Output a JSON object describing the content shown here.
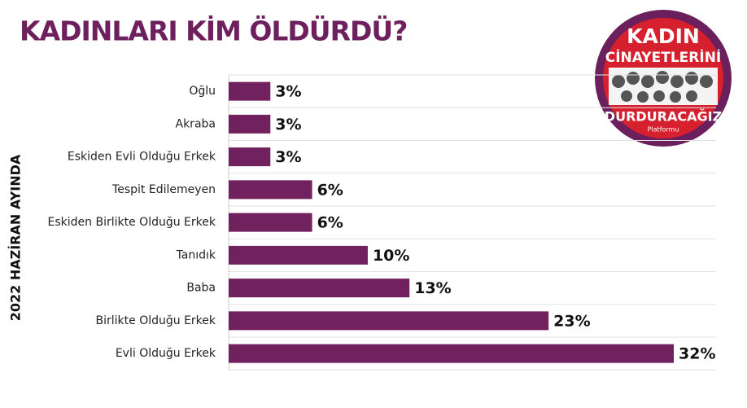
{
  "chart_data": {
    "type": "bar",
    "orientation": "horizontal",
    "title": "KADINLARI KİM ÖLDÜRDÜ?",
    "y_label": "2022 HAZİRAN AYINDA",
    "categories": [
      "Oğlu",
      "Akraba",
      "Eskiden Evli Olduğu Erkek",
      "Tespit Edilemeyen",
      "Eskiden Birlikte Olduğu Erkek",
      "Tanıdık",
      "Baba",
      "Birlikte Olduğu Erkek",
      "Evli Olduğu Erkek"
    ],
    "values": [
      3,
      3,
      3,
      6,
      6,
      10,
      13,
      23,
      32
    ],
    "value_labels": [
      "3%",
      "3%",
      "3%",
      "6%",
      "6%",
      "10%",
      "13%",
      "23%",
      "32%"
    ],
    "color": "#72215f",
    "grid": true
  },
  "logo": {
    "lines": [
      "KADIN",
      "CİNAYETLERİNİ",
      "DURDURACAĞIZ",
      "Platformu"
    ]
  }
}
